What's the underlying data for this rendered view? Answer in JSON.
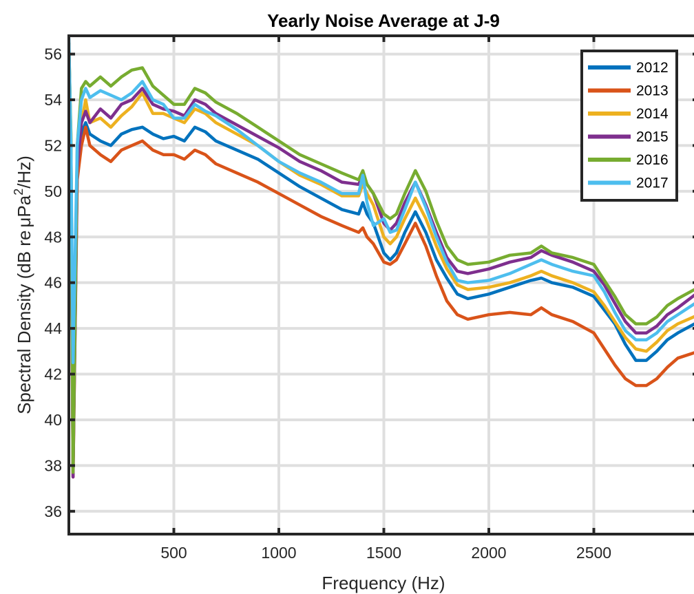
{
  "chart_data": {
    "type": "line",
    "title": "Yearly Noise Average at J-9",
    "xlabel": "Frequency (Hz)",
    "ylabel_parts": [
      "Spectral Density (dB re",
      "μ",
      "Pa",
      "2",
      "/Hz)"
    ],
    "xlim": [
      0,
      3000
    ],
    "ylim": [
      35,
      56.8
    ],
    "xticks": [
      500,
      1000,
      1500,
      2000,
      2500
    ],
    "yticks": [
      36,
      38,
      40,
      42,
      44,
      46,
      48,
      50,
      52,
      54,
      56
    ],
    "grid": true,
    "legend_position": "top-right",
    "x": [
      0,
      10,
      20,
      40,
      60,
      80,
      100,
      150,
      200,
      250,
      300,
      350,
      400,
      450,
      500,
      550,
      600,
      650,
      700,
      800,
      900,
      1000,
      1100,
      1200,
      1300,
      1380,
      1400,
      1420,
      1450,
      1500,
      1530,
      1560,
      1600,
      1650,
      1700,
      1750,
      1800,
      1850,
      1900,
      2000,
      2100,
      2200,
      2250,
      2300,
      2400,
      2500,
      2550,
      2600,
      2650,
      2700,
      2750,
      2800,
      2850,
      2900,
      3000
    ],
    "series": [
      {
        "name": "2012",
        "color": "#0072BD",
        "values": [
          56.5,
          52.0,
          38.0,
          51.0,
          52.5,
          53.0,
          52.5,
          52.2,
          52.0,
          52.5,
          52.7,
          52.8,
          52.5,
          52.3,
          52.4,
          52.2,
          52.8,
          52.6,
          52.2,
          51.8,
          51.4,
          50.8,
          50.2,
          49.7,
          49.2,
          49.0,
          49.5,
          49.0,
          48.6,
          47.3,
          47.0,
          47.3,
          48.2,
          49.1,
          48.2,
          47.0,
          46.2,
          45.5,
          45.3,
          45.5,
          45.8,
          46.1,
          46.2,
          46.0,
          45.8,
          45.4,
          44.8,
          44.2,
          43.3,
          42.6,
          42.6,
          43.0,
          43.5,
          43.8,
          44.3
        ]
      },
      {
        "name": "2013",
        "color": "#D95319",
        "values": [
          56.5,
          51.5,
          37.5,
          50.5,
          52.0,
          52.8,
          52.0,
          51.6,
          51.3,
          51.8,
          52.0,
          52.2,
          51.8,
          51.6,
          51.6,
          51.4,
          51.8,
          51.6,
          51.2,
          50.8,
          50.4,
          49.9,
          49.4,
          48.9,
          48.5,
          48.2,
          48.4,
          48.0,
          47.7,
          46.9,
          46.8,
          47.0,
          47.7,
          48.6,
          47.6,
          46.3,
          45.2,
          44.6,
          44.4,
          44.6,
          44.7,
          44.6,
          44.9,
          44.6,
          44.3,
          43.8,
          43.1,
          42.4,
          41.8,
          41.5,
          41.5,
          41.8,
          42.3,
          42.7,
          43.0
        ]
      },
      {
        "name": "2014",
        "color": "#EDB120",
        "values": [
          56.5,
          52.3,
          38.2,
          51.5,
          53.0,
          54.0,
          53.0,
          53.2,
          52.8,
          53.3,
          53.7,
          54.3,
          53.4,
          53.4,
          53.2,
          53.0,
          53.6,
          53.4,
          53.0,
          52.5,
          52.0,
          51.3,
          50.7,
          50.3,
          49.8,
          49.8,
          50.3,
          49.9,
          49.4,
          48.0,
          47.7,
          48.0,
          48.8,
          49.7,
          48.8,
          47.6,
          46.6,
          45.9,
          45.7,
          45.8,
          46.0,
          46.3,
          46.5,
          46.3,
          46.0,
          45.6,
          45.0,
          44.3,
          43.6,
          43.1,
          43.0,
          43.4,
          43.9,
          44.2,
          44.6
        ]
      },
      {
        "name": "2015",
        "color": "#7E2F8E",
        "values": [
          56.5,
          51.0,
          37.5,
          51.0,
          53.0,
          53.5,
          53.0,
          53.6,
          53.2,
          53.8,
          54.0,
          54.5,
          53.8,
          53.6,
          53.5,
          53.3,
          54.0,
          53.8,
          53.4,
          52.9,
          52.4,
          51.9,
          51.3,
          50.9,
          50.4,
          50.3,
          50.7,
          50.3,
          49.9,
          48.6,
          48.3,
          48.6,
          49.5,
          50.4,
          49.4,
          48.2,
          47.1,
          46.5,
          46.4,
          46.6,
          46.9,
          47.1,
          47.4,
          47.2,
          46.9,
          46.5,
          45.9,
          45.1,
          44.3,
          43.8,
          43.8,
          44.1,
          44.6,
          44.9,
          45.6
        ]
      },
      {
        "name": "2016",
        "color": "#77AC30",
        "values": [
          56.5,
          52.5,
          37.7,
          52.0,
          54.5,
          54.8,
          54.6,
          55.0,
          54.6,
          55.0,
          55.3,
          55.4,
          54.6,
          54.2,
          53.8,
          53.8,
          54.5,
          54.3,
          53.9,
          53.4,
          52.8,
          52.2,
          51.6,
          51.2,
          50.8,
          50.5,
          50.9,
          50.3,
          49.9,
          49.0,
          48.8,
          49.0,
          49.9,
          50.9,
          50.0,
          48.7,
          47.6,
          47.0,
          46.8,
          46.9,
          47.2,
          47.3,
          47.6,
          47.3,
          47.1,
          46.8,
          46.1,
          45.4,
          44.6,
          44.2,
          44.2,
          44.5,
          45.0,
          45.3,
          45.8
        ]
      },
      {
        "name": "2017",
        "color": "#4DBEEE",
        "values": [
          56.7,
          52.0,
          42.5,
          52.0,
          54.0,
          54.5,
          54.1,
          54.4,
          54.2,
          54.0,
          54.3,
          54.8,
          54.0,
          53.8,
          53.2,
          53.2,
          53.8,
          53.5,
          53.3,
          52.7,
          52.0,
          51.3,
          50.8,
          50.4,
          49.9,
          49.9,
          50.7,
          49.5,
          48.5,
          48.8,
          48.2,
          48.3,
          49.2,
          50.4,
          49.3,
          48.0,
          46.9,
          46.1,
          46.0,
          46.1,
          46.4,
          46.8,
          47.0,
          46.8,
          46.5,
          46.3,
          45.6,
          44.7,
          43.9,
          43.5,
          43.5,
          43.8,
          44.3,
          44.6,
          45.2
        ]
      }
    ]
  }
}
